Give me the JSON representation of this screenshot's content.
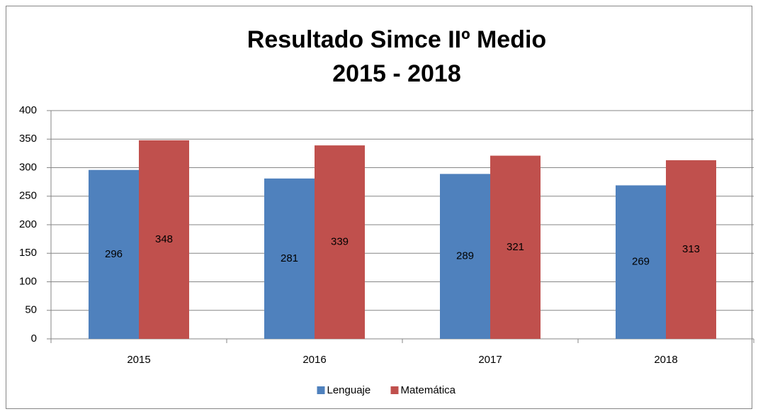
{
  "chart_data": {
    "type": "bar",
    "title": [
      "Resultado Simce IIº Medio",
      "2015 - 2018"
    ],
    "categories": [
      "2015",
      "2016",
      "2017",
      "2018"
    ],
    "series": [
      {
        "name": "Lenguaje",
        "color": "#4f81bd",
        "values": [
          296,
          281,
          289,
          269
        ]
      },
      {
        "name": "Matemática",
        "color": "#c0504d",
        "values": [
          348,
          339,
          321,
          313
        ]
      }
    ],
    "ylim": [
      0,
      400
    ],
    "yticks": [
      0,
      50,
      100,
      150,
      200,
      250,
      300,
      350,
      400
    ],
    "grid": true,
    "legend": "bottom"
  }
}
